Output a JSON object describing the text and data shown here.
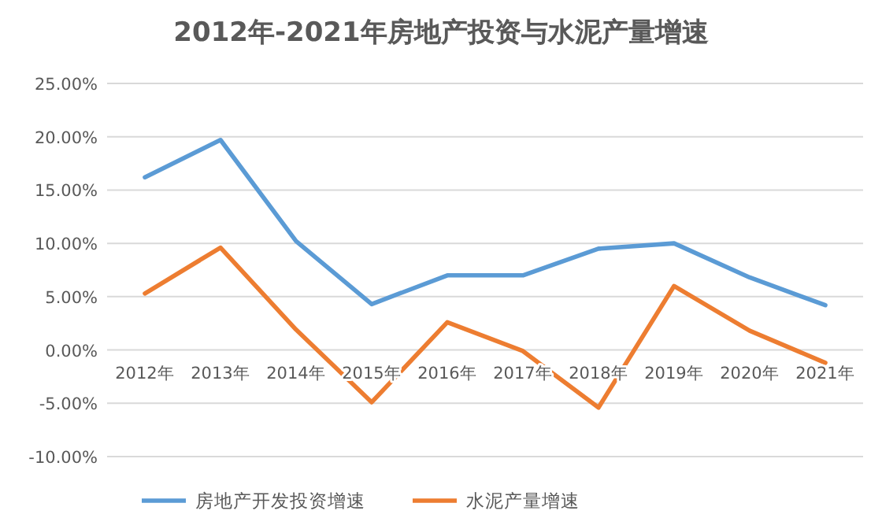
{
  "chart_data": {
    "type": "line",
    "title": "2012年-2021年房地产投资与水泥产量增速",
    "categories": [
      "2012年",
      "2013年",
      "2014年",
      "2015年",
      "2016年",
      "2017年",
      "2018年",
      "2019年",
      "2020年",
      "2021年"
    ],
    "series": [
      {
        "name": "房地产开发投资增速",
        "color": "#5b9bd5",
        "values": [
          16.2,
          19.7,
          10.2,
          4.3,
          7.0,
          7.0,
          9.5,
          10.0,
          6.8,
          4.2
        ]
      },
      {
        "name": "水泥产量增速",
        "color": "#ed7d31",
        "values": [
          5.3,
          9.6,
          1.9,
          -4.9,
          2.6,
          -0.1,
          -5.4,
          6.0,
          1.8,
          -1.2
        ]
      }
    ],
    "ylim": [
      -10,
      25
    ],
    "yticks": [
      {
        "value": -10,
        "label": "-10.00%"
      },
      {
        "value": -5,
        "label": "-5.00%"
      },
      {
        "value": 0,
        "label": "0.00%"
      },
      {
        "value": 5,
        "label": "5.00%"
      },
      {
        "value": 10,
        "label": "10.00%"
      },
      {
        "value": 15,
        "label": "15.00%"
      },
      {
        "value": 20,
        "label": "20.00%"
      },
      {
        "value": 25,
        "label": "25.00%"
      }
    ],
    "grid": "y",
    "legend": "bottom",
    "marker": "none",
    "line_style": "solid"
  }
}
